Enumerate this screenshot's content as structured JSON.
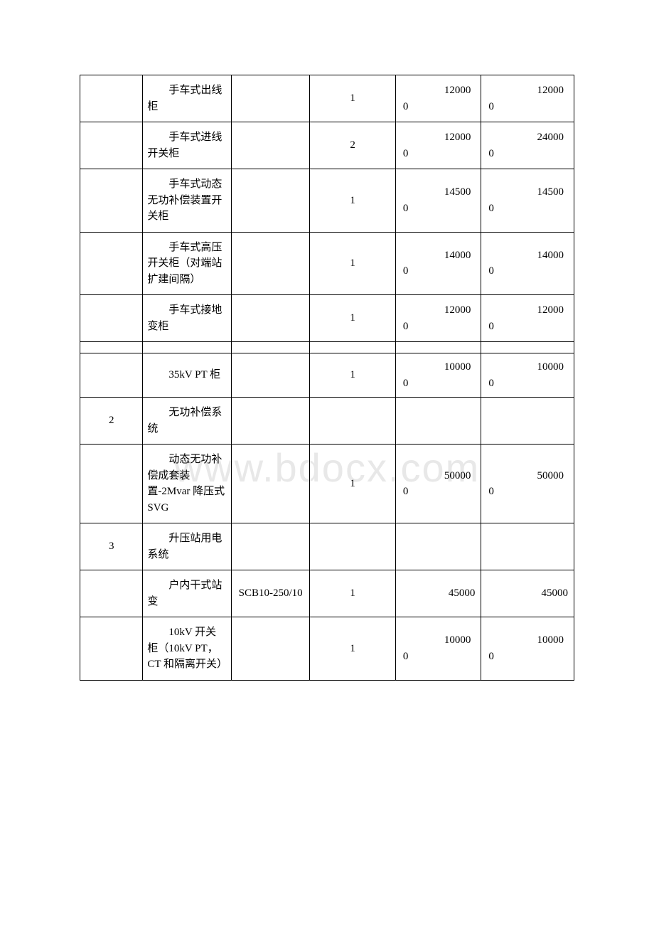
{
  "table": {
    "columns": 6,
    "rows": [
      {
        "c0": "",
        "c1": "手车式出线柜",
        "c2": "",
        "c3": "1",
        "c4_top": "12000",
        "c4_sub": "0",
        "c5_top": "12000",
        "c5_sub": "0"
      },
      {
        "c0": "",
        "c1": "手车式进线开关柜",
        "c2": "",
        "c3": "2",
        "c4_top": "12000",
        "c4_sub": "0",
        "c5_top": "24000",
        "c5_sub": "0"
      },
      {
        "c0": "",
        "c1": "手车式动态无功补偿装置开关柜",
        "c2": "",
        "c3": "1",
        "c4_top": "14500",
        "c4_sub": "0",
        "c5_top": "14500",
        "c5_sub": "0"
      },
      {
        "c0": "",
        "c1": "手车式高压开关柜（对端站扩建间隔）",
        "c2": "",
        "c3": "1",
        "c4_top": "14000",
        "c4_sub": "0",
        "c5_top": "14000",
        "c5_sub": "0"
      },
      {
        "c0": "",
        "c1": "手车式接地变柜",
        "c2": "",
        "c3": "1",
        "c4_top": "12000",
        "c4_sub": "0",
        "c5_top": "12000",
        "c5_sub": "0"
      },
      {
        "spacer": true
      },
      {
        "c0": "",
        "c1": "35kV PT 柜",
        "c2": "",
        "c3": "1",
        "c4_top": "10000",
        "c4_sub": "0",
        "c5_top": "10000",
        "c5_sub": "0"
      },
      {
        "c0": "2",
        "c1": "无功补偿系统",
        "c2": "",
        "c3": "",
        "c4_single": "",
        "c5_single": ""
      },
      {
        "c0": "",
        "c1": "动态无功补偿成套装置-2Mvar 降压式 SVG",
        "c2": "",
        "c3": "1",
        "c4_top": "50000",
        "c4_sub": "0",
        "c5_top": "50000",
        "c5_sub": "0"
      },
      {
        "c0": "3",
        "c1": "升压站用电系统",
        "c2": "",
        "c3": "",
        "c4_single": "",
        "c5_single": ""
      },
      {
        "c0": "",
        "c1": "户内干式站变",
        "c2": "SCB10-250/10",
        "c3": "1",
        "c4_single_right": "45000",
        "c5_single_right": "45000"
      },
      {
        "c0": "",
        "c1": "10kV 开关柜（10kV PT，CT 和隔离开关）",
        "c2": "",
        "c3": "1",
        "c4_top": "10000",
        "c4_sub": "0",
        "c5_top": "10000",
        "c5_sub": "0"
      }
    ]
  },
  "colors": {
    "border": "#000000",
    "text": "#000000",
    "background": "#ffffff",
    "watermark": "#e8e8e8"
  }
}
